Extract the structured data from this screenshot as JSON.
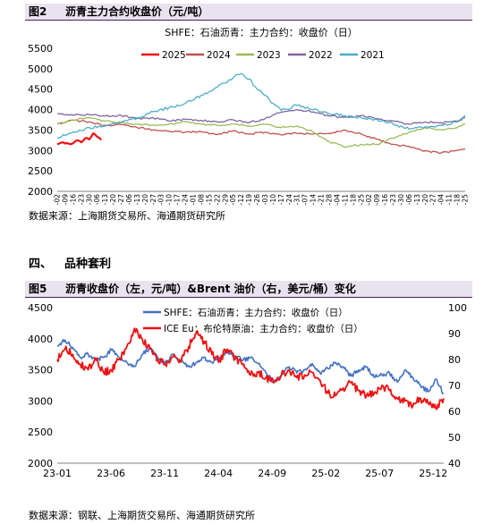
{
  "figure1": {
    "number": "图2",
    "title": "沥青主力合约收盘价（元/吨）",
    "source": "数据来源：上海期货交易所、海通期货研究所",
    "chart_data": {
      "type": "line",
      "title": "SHFE：石油沥青：主力合约：收盘价（日）",
      "ylim": [
        2000,
        5500
      ],
      "yticks": [
        2000,
        2500,
        3000,
        3500,
        4000,
        4500,
        5000,
        5500
      ],
      "xlabel": "",
      "ylabel": "",
      "grid": false,
      "legend_position": "top",
      "x_ticks": [
        "01-02",
        "01-09",
        "01-16",
        "01-23",
        "01-30",
        "02-06",
        "02-13",
        "02-20",
        "02-27",
        "03-06",
        "03-13",
        "03-20",
        "03-27",
        "04-03",
        "04-10",
        "04-17",
        "04-24",
        "05-01",
        "05-08",
        "05-15",
        "05-22",
        "05-29",
        "06-05",
        "06-12",
        "06-19",
        "06-26",
        "07-03",
        "07-10",
        "07-17",
        "07-24",
        "07-31",
        "08-07",
        "08-14",
        "08-21",
        "08-28",
        "09-04",
        "09-11",
        "09-18",
        "09-25",
        "10-02",
        "10-09",
        "10-16",
        "10-23",
        "10-30",
        "11-06",
        "11-13",
        "11-20",
        "11-27",
        "12-04",
        "12-11",
        "12-18",
        "12-25"
      ],
      "series": [
        {
          "name": "2025",
          "color": "#ee1111",
          "x": [
            0,
            0.5,
            1,
            1.5,
            2,
            2.5,
            3,
            3.5,
            4,
            4.5,
            5,
            5.5
          ],
          "values": [
            3150,
            3190,
            3170,
            3160,
            3180,
            3250,
            3200,
            3300,
            3270,
            3420,
            3330,
            3260
          ]
        },
        {
          "name": "2024",
          "color": "#c0504d",
          "x": [
            0,
            2,
            4,
            6,
            8,
            10,
            12,
            14,
            16,
            18,
            20,
            22,
            24,
            26,
            28,
            30,
            32,
            34,
            36,
            38,
            40,
            42,
            44,
            46,
            48,
            50,
            51
          ],
          "values": [
            3660,
            3740,
            3700,
            3600,
            3630,
            3560,
            3500,
            3470,
            3450,
            3460,
            3390,
            3480,
            3400,
            3450,
            3380,
            3420,
            3400,
            3420,
            3500,
            3400,
            3270,
            3150,
            3100,
            2990,
            2940,
            3000,
            3040
          ]
        },
        {
          "name": "2023",
          "color": "#9bbb59",
          "x": [
            0,
            2,
            4,
            6,
            8,
            10,
            12,
            14,
            16,
            18,
            20,
            22,
            24,
            26,
            28,
            30,
            32,
            34,
            36,
            38,
            40,
            42,
            44,
            46,
            48,
            50,
            51
          ],
          "values": [
            3640,
            3750,
            3800,
            3720,
            3680,
            3640,
            3620,
            3650,
            3700,
            3640,
            3610,
            3650,
            3600,
            3640,
            3560,
            3600,
            3450,
            3220,
            3080,
            3150,
            3150,
            3300,
            3450,
            3560,
            3500,
            3560,
            3650
          ]
        },
        {
          "name": "2022",
          "color": "#8064a2",
          "x": [
            0,
            2,
            4,
            6,
            8,
            10,
            12,
            14,
            16,
            18,
            20,
            22,
            24,
            26,
            28,
            30,
            32,
            34,
            36,
            38,
            40,
            42,
            44,
            46,
            48,
            50,
            51
          ],
          "values": [
            3900,
            3860,
            3880,
            3840,
            3860,
            3780,
            3800,
            3720,
            3760,
            3740,
            3700,
            3750,
            3680,
            3780,
            3940,
            4000,
            3940,
            3840,
            3820,
            3850,
            3780,
            3720,
            3640,
            3700,
            3680,
            3710,
            3800
          ]
        },
        {
          "name": "2021",
          "color": "#4bacc6",
          "x": [
            0,
            2,
            4,
            6,
            8,
            10,
            12,
            14,
            16,
            18,
            20,
            21,
            22,
            23,
            24,
            25,
            26,
            27,
            28,
            30,
            32,
            34,
            36,
            38,
            40,
            42,
            44,
            46,
            48,
            50,
            51
          ],
          "values": [
            3300,
            3450,
            3560,
            3620,
            3700,
            3800,
            3950,
            4050,
            4150,
            4350,
            4550,
            4650,
            4780,
            4880,
            4750,
            4500,
            4350,
            4150,
            3980,
            4100,
            4000,
            3900,
            3850,
            3800,
            3760,
            3650,
            3520,
            3580,
            3620,
            3700,
            3860
          ]
        }
      ]
    }
  },
  "section": {
    "number": "四、",
    "title": "品种套利"
  },
  "figure2": {
    "number": "图5",
    "title": "沥青收盘价（左，元/吨）&Brent 油价（右，美元/桶）变化",
    "source": "数据来源：钢联、上海期货交易所、海通期货研究所",
    "chart_data": {
      "type": "line",
      "ylim": [
        2000,
        4500
      ],
      "yticks": [
        2000,
        2500,
        3000,
        3500,
        4000,
        4500
      ],
      "y2lim": [
        40,
        100
      ],
      "y2ticks": [
        40,
        50,
        60,
        70,
        80,
        90,
        100
      ],
      "x_ticks": [
        "23-01",
        "23-06",
        "23-11",
        "24-04",
        "24-09",
        "25-02",
        "25-07",
        "25-12"
      ],
      "grid": false,
      "legend_position": "top",
      "series": [
        {
          "name": "SHFE：石油沥青：主力合约：收盘价（日）",
          "axis": "left",
          "color": "#4472c4",
          "x": [
            0,
            2,
            4,
            6,
            8,
            10,
            12,
            14,
            16,
            18,
            20,
            22,
            24,
            26,
            28,
            30,
            32,
            34,
            36,
            38,
            40,
            42,
            44,
            46,
            48,
            50,
            52,
            54,
            56,
            58,
            60,
            62,
            64,
            66,
            68,
            70,
            72,
            74,
            76,
            78,
            80,
            82,
            84,
            86,
            88,
            90,
            92,
            94,
            96,
            98,
            100
          ],
          "values": [
            3880,
            3980,
            3860,
            3700,
            3750,
            3650,
            3700,
            3820,
            3700,
            3620,
            3560,
            3750,
            3850,
            3700,
            3600,
            3750,
            3650,
            3550,
            3620,
            3700,
            3620,
            3700,
            3800,
            3720,
            3650,
            3700,
            3600,
            3450,
            3300,
            3420,
            3550,
            3450,
            3500,
            3600,
            3450,
            3520,
            3620,
            3550,
            3400,
            3500,
            3550,
            3380,
            3420,
            3450,
            3300,
            3500,
            3380,
            3250,
            3150,
            3350,
            3120
          ]
        },
        {
          "name": "ICE Eu：布伦特原油：主力合约：收盘价（日）",
          "axis": "right",
          "color": "#ee1111",
          "x": [
            0,
            2,
            4,
            6,
            8,
            10,
            12,
            14,
            16,
            18,
            20,
            22,
            24,
            26,
            28,
            30,
            32,
            34,
            36,
            38,
            40,
            42,
            44,
            46,
            48,
            50,
            52,
            54,
            56,
            58,
            60,
            62,
            64,
            66,
            68,
            70,
            72,
            74,
            76,
            78,
            80,
            82,
            84,
            86,
            88,
            90,
            92,
            94,
            96,
            98,
            100
          ],
          "values": [
            80,
            84,
            82,
            78,
            76,
            80,
            75,
            76,
            80,
            85,
            92,
            88,
            84,
            80,
            78,
            81,
            79,
            85,
            90,
            87,
            82,
            80,
            84,
            80,
            78,
            74,
            75,
            73,
            71,
            74,
            76,
            73,
            74,
            75,
            72,
            67,
            66,
            69,
            71,
            68,
            66,
            67,
            70,
            68,
            65,
            64,
            62,
            65,
            63,
            61,
            65
          ]
        }
      ]
    }
  },
  "colors": {
    "header_bg": "#e9e3ef",
    "header_rule": "#4b1f5a"
  }
}
